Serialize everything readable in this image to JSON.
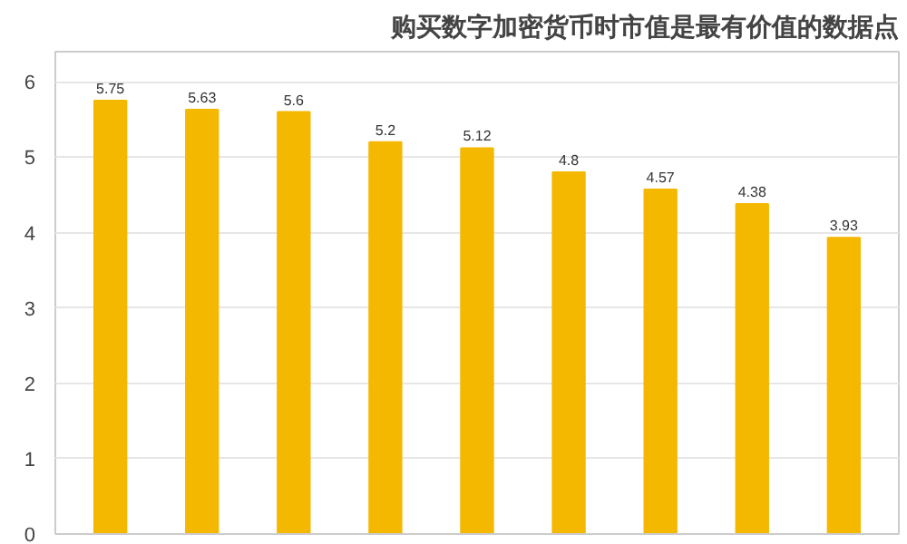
{
  "chart_data": {
    "type": "bar",
    "title": "购买数字加密货币时市值是最有价值的数据点",
    "categories": [
      null,
      null,
      null,
      null,
      null,
      null,
      null,
      null,
      null
    ],
    "values": [
      5.75,
      5.63,
      5.6,
      5.2,
      5.12,
      4.8,
      4.57,
      4.38,
      3.93
    ],
    "color": "#f5b800",
    "ylim": [
      0,
      6.4
    ],
    "yticks": [
      0,
      1,
      2,
      3,
      4,
      5,
      6
    ],
    "grid": "y",
    "data_labels": true,
    "tick_labels": "y"
  }
}
